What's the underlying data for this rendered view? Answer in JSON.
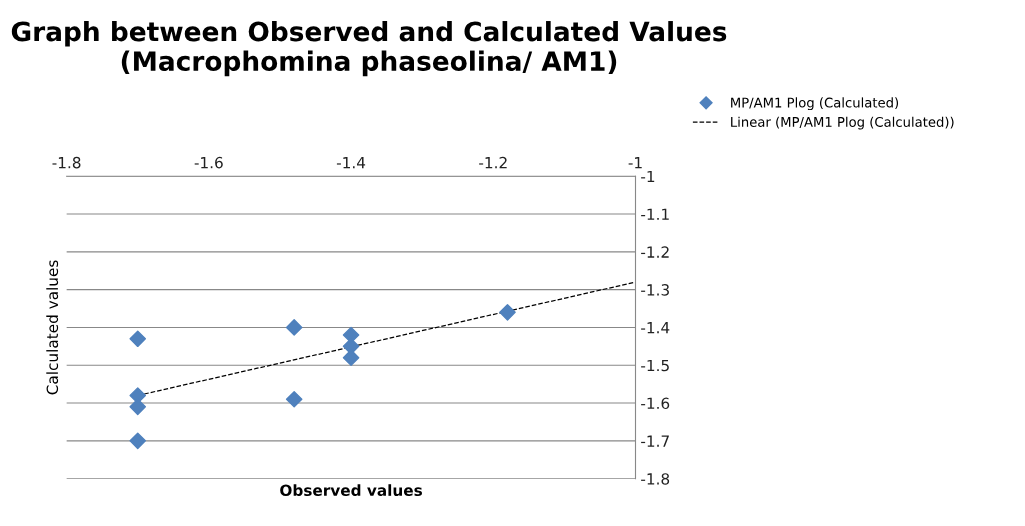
{
  "chart_data": {
    "type": "scatter",
    "title": "Graph between Observed and Calculated Values\n(Macrophomina phaseolina/ AM1)",
    "xlabel": "Observed values",
    "ylabel": "Calculated values",
    "xlim": [
      -1.8,
      -1
    ],
    "xticks": [
      -1.8,
      -1.6,
      -1.4,
      -1.2,
      -1
    ],
    "ylim": [
      -1.8,
      -1
    ],
    "yticks": [
      -1.8,
      -1.7,
      -1.6,
      -1.5,
      -1.4,
      -1.3,
      -1.2,
      -1.1,
      -1
    ],
    "grid": "y",
    "legend": "top right",
    "marker": "diamond",
    "series": [
      {
        "name": "MP/AM1 Plog (Calculated)",
        "color": "#4f81bd",
        "x": [
          -1.7,
          -1.7,
          -1.7,
          -1.7,
          -1.48,
          -1.48,
          -1.4,
          -1.4,
          -1.4,
          -1.18
        ],
        "values": [
          -1.43,
          -1.58,
          -1.61,
          -1.7,
          -1.4,
          -1.59,
          -1.42,
          -1.45,
          -1.48,
          -1.36
        ]
      },
      {
        "name": "Linear (MP/AM1 Plog (Calculated))",
        "type": "line",
        "color": "#000000",
        "line_style": "dashed",
        "marker": "none",
        "x": [
          -1.7,
          -1
        ],
        "values": [
          -1.58,
          -1.28
        ]
      }
    ]
  }
}
